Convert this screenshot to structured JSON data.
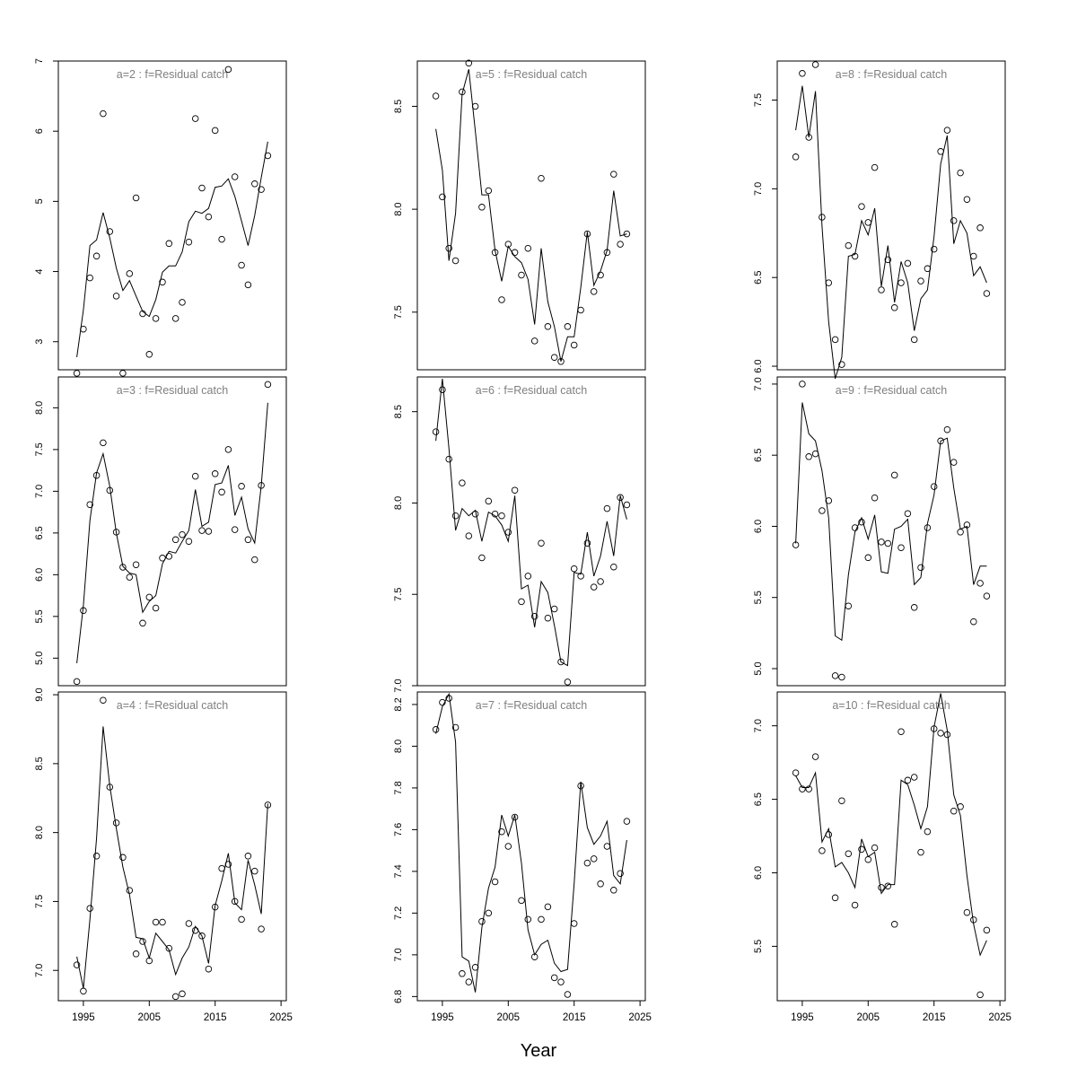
{
  "figure": {
    "xlabel": "Year"
  },
  "chart_data": [
    {
      "type": "line",
      "title": "a=2  :  f=Residual catch",
      "x": [
        1994,
        1995,
        1996,
        1997,
        1998,
        1999,
        2000,
        2001,
        2002,
        2003,
        2004,
        2005,
        2006,
        2007,
        2008,
        2009,
        2010,
        2011,
        2012,
        2013,
        2014,
        2015,
        2016,
        2017,
        2018,
        2019,
        2020,
        2021,
        2022,
        2023
      ],
      "ylim": [
        2.6,
        7.0
      ],
      "yticks": [
        3,
        4,
        5,
        6,
        7
      ],
      "xticks": [
        1995,
        2005,
        2015,
        2025
      ],
      "series": [
        {
          "kind": "points",
          "values": [
            2.55,
            3.18,
            3.91,
            4.22,
            6.25,
            4.57,
            3.65,
            2.55,
            3.97,
            5.05,
            3.4,
            2.82,
            3.33,
            3.85,
            4.4,
            3.33,
            3.56,
            4.42,
            6.18,
            5.19,
            4.78,
            6.01,
            4.46,
            6.88,
            5.35,
            4.09,
            3.81,
            5.25,
            5.17,
            5.65
          ]
        },
        {
          "kind": "line",
          "values": [
            2.78,
            3.45,
            4.37,
            4.45,
            4.84,
            4.48,
            4.05,
            3.73,
            3.87,
            3.65,
            3.43,
            3.36,
            3.6,
            3.99,
            4.08,
            4.08,
            4.28,
            4.71,
            4.86,
            4.83,
            4.9,
            5.2,
            5.22,
            5.32,
            5.07,
            4.72,
            4.37,
            4.8,
            5.34,
            5.85
          ]
        }
      ]
    },
    {
      "type": "line",
      "title": "a=5  :  f=Residual catch",
      "x": [
        1994,
        1995,
        1996,
        1997,
        1998,
        1999,
        2000,
        2001,
        2002,
        2003,
        2004,
        2005,
        2006,
        2007,
        2008,
        2009,
        2010,
        2011,
        2012,
        2013,
        2014,
        2015,
        2016,
        2017,
        2018,
        2019,
        2020,
        2021,
        2022,
        2023
      ],
      "ylim": [
        7.22,
        8.72
      ],
      "yticks": [
        7.5,
        8.0,
        8.5
      ],
      "xticks": [
        1995,
        2005,
        2015,
        2025
      ],
      "series": [
        {
          "kind": "points",
          "values": [
            8.55,
            8.06,
            7.81,
            7.75,
            8.57,
            8.71,
            8.5,
            8.01,
            8.09,
            7.79,
            7.56,
            7.83,
            7.79,
            7.68,
            7.81,
            7.36,
            8.15,
            7.43,
            7.28,
            7.26,
            7.43,
            7.34,
            7.51,
            7.88,
            7.6,
            7.68,
            7.79,
            8.17,
            7.83,
            7.88
          ]
        },
        {
          "kind": "line",
          "values": [
            8.39,
            8.19,
            7.75,
            7.98,
            8.56,
            8.68,
            8.38,
            8.07,
            8.07,
            7.8,
            7.65,
            7.82,
            7.77,
            7.74,
            7.66,
            7.44,
            7.81,
            7.55,
            7.43,
            7.26,
            7.38,
            7.38,
            7.62,
            7.89,
            7.63,
            7.7,
            7.8,
            8.09,
            7.87,
            7.88
          ]
        }
      ]
    },
    {
      "type": "line",
      "title": "a=8  :  f=Residual catch",
      "x": [
        1994,
        1995,
        1996,
        1997,
        1998,
        1999,
        2000,
        2001,
        2002,
        2003,
        2004,
        2005,
        2006,
        2007,
        2008,
        2009,
        2010,
        2011,
        2012,
        2013,
        2014,
        2015,
        2016,
        2017,
        2018,
        2019,
        2020,
        2021,
        2022,
        2023
      ],
      "ylim": [
        5.98,
        7.72
      ],
      "yticks": [
        6.0,
        6.5,
        7.0,
        7.5
      ],
      "xticks": [
        1995,
        2005,
        2015,
        2025
      ],
      "series": [
        {
          "kind": "points",
          "values": [
            7.18,
            7.65,
            7.29,
            7.7,
            6.84,
            6.47,
            6.15,
            6.01,
            6.68,
            6.62,
            6.9,
            6.81,
            7.12,
            6.43,
            6.6,
            6.33,
            6.47,
            6.58,
            6.15,
            6.48,
            6.55,
            6.66,
            7.21,
            7.33,
            6.82,
            7.09,
            6.94,
            6.62,
            6.78,
            6.41
          ]
        },
        {
          "kind": "line",
          "values": [
            7.33,
            7.58,
            7.29,
            7.55,
            6.79,
            6.25,
            5.93,
            6.05,
            6.62,
            6.63,
            6.82,
            6.74,
            6.89,
            6.45,
            6.68,
            6.36,
            6.59,
            6.47,
            6.2,
            6.38,
            6.43,
            6.73,
            7.14,
            7.3,
            6.69,
            6.82,
            6.75,
            6.51,
            6.56,
            6.47
          ]
        }
      ]
    },
    {
      "type": "line",
      "title": "a=3  :  f=Residual catch",
      "x": [
        1994,
        1995,
        1996,
        1997,
        1998,
        1999,
        2000,
        2001,
        2002,
        2003,
        2004,
        2005,
        2006,
        2007,
        2008,
        2009,
        2010,
        2011,
        2012,
        2013,
        2014,
        2015,
        2016,
        2017,
        2018,
        2019,
        2020,
        2021,
        2022,
        2023
      ],
      "ylim": [
        4.67,
        8.37
      ],
      "yticks": [
        5.0,
        5.5,
        6.0,
        6.5,
        7.0,
        7.5,
        8.0
      ],
      "xticks": [
        1995,
        2005,
        2015,
        2025
      ],
      "series": [
        {
          "kind": "points",
          "values": [
            4.72,
            5.57,
            6.84,
            7.19,
            7.58,
            7.01,
            6.51,
            6.09,
            5.97,
            6.12,
            5.42,
            5.73,
            5.6,
            6.2,
            6.22,
            6.42,
            6.48,
            6.4,
            7.18,
            6.53,
            6.52,
            7.21,
            6.99,
            7.5,
            6.54,
            7.06,
            6.42,
            6.18,
            7.07,
            8.28
          ]
        },
        {
          "kind": "line",
          "values": [
            4.94,
            5.63,
            6.65,
            7.22,
            7.45,
            7.06,
            6.5,
            6.1,
            6.02,
            6.0,
            5.55,
            5.68,
            5.75,
            6.13,
            6.28,
            6.26,
            6.4,
            6.53,
            7.02,
            6.58,
            6.63,
            7.08,
            7.1,
            7.31,
            6.71,
            6.93,
            6.55,
            6.38,
            7.07,
            8.06
          ]
        }
      ]
    },
    {
      "type": "line",
      "title": "a=6  :  f=Residual catch",
      "x": [
        1994,
        1995,
        1996,
        1997,
        1998,
        1999,
        2000,
        2001,
        2002,
        2003,
        2004,
        2005,
        2006,
        2007,
        2008,
        2009,
        2010,
        2011,
        2012,
        2013,
        2014,
        2015,
        2016,
        2017,
        2018,
        2019,
        2020,
        2021,
        2022,
        2023
      ],
      "ylim": [
        7.0,
        8.69
      ],
      "yticks": [
        7.0,
        7.5,
        8.0,
        8.5
      ],
      "xticks": [
        1995,
        2005,
        2015,
        2025
      ],
      "series": [
        {
          "kind": "points",
          "values": [
            8.39,
            8.62,
            8.24,
            7.93,
            8.11,
            7.82,
            7.94,
            7.7,
            8.01,
            7.94,
            7.93,
            7.84,
            8.07,
            7.46,
            7.6,
            7.38,
            7.78,
            7.37,
            7.42,
            7.13,
            7.02,
            7.64,
            7.6,
            7.78,
            7.54,
            7.57,
            7.97,
            7.65,
            8.03,
            7.99
          ]
        },
        {
          "kind": "line",
          "values": [
            8.34,
            8.68,
            8.3,
            7.85,
            7.97,
            7.93,
            7.96,
            7.79,
            7.95,
            7.93,
            7.88,
            7.79,
            8.04,
            7.53,
            7.55,
            7.32,
            7.57,
            7.51,
            7.33,
            7.13,
            7.11,
            7.62,
            7.61,
            7.84,
            7.6,
            7.71,
            7.9,
            7.71,
            8.04,
            7.91
          ]
        }
      ]
    },
    {
      "type": "line",
      "title": "a=9  :  f=Residual catch",
      "x": [
        1994,
        1995,
        1996,
        1997,
        1998,
        1999,
        2000,
        2001,
        2002,
        2003,
        2004,
        2005,
        2006,
        2007,
        2008,
        2009,
        2010,
        2011,
        2012,
        2013,
        2014,
        2015,
        2016,
        2017,
        2018,
        2019,
        2020,
        2021,
        2022,
        2023
      ],
      "ylim": [
        4.88,
        7.05
      ],
      "yticks": [
        5.0,
        5.5,
        6.0,
        6.5,
        7.0
      ],
      "xticks": [
        1995,
        2005,
        2015,
        2025
      ],
      "series": [
        {
          "kind": "points",
          "values": [
            5.87,
            7.0,
            6.49,
            6.51,
            6.11,
            6.18,
            4.95,
            4.94,
            5.44,
            5.99,
            6.03,
            5.78,
            6.2,
            5.89,
            5.88,
            6.36,
            5.85,
            6.09,
            5.43,
            5.71,
            5.99,
            6.28,
            6.6,
            6.68,
            6.45,
            5.96,
            6.01,
            5.33,
            5.6,
            5.51
          ]
        },
        {
          "kind": "line",
          "values": [
            5.88,
            6.87,
            6.65,
            6.6,
            6.39,
            6.06,
            5.23,
            5.2,
            5.66,
            5.96,
            6.06,
            5.91,
            6.08,
            5.68,
            5.67,
            5.98,
            6.0,
            6.05,
            5.59,
            5.64,
            6.02,
            6.22,
            6.6,
            6.62,
            6.27,
            5.98,
            6.0,
            5.59,
            5.72,
            5.72
          ]
        }
      ]
    },
    {
      "type": "line",
      "title": "a=4  :  f=Residual catch",
      "x": [
        1994,
        1995,
        1996,
        1997,
        1998,
        1999,
        2000,
        2001,
        2002,
        2003,
        2004,
        2005,
        2006,
        2007,
        2008,
        2009,
        2010,
        2011,
        2012,
        2013,
        2014,
        2015,
        2016,
        2017,
        2018,
        2019,
        2020,
        2021,
        2022,
        2023
      ],
      "ylim": [
        6.78,
        9.02
      ],
      "yticks": [
        7.0,
        7.5,
        8.0,
        8.5,
        9.0
      ],
      "xticks": [
        1995,
        2005,
        2015,
        2025
      ],
      "series": [
        {
          "kind": "points",
          "values": [
            7.04,
            6.85,
            7.45,
            7.83,
            8.96,
            8.33,
            8.07,
            7.82,
            7.58,
            7.12,
            7.21,
            7.07,
            7.35,
            7.35,
            7.16,
            6.81,
            6.83,
            7.34,
            7.29,
            7.25,
            7.01,
            7.46,
            7.74,
            7.77,
            7.5,
            7.37,
            7.83,
            7.72,
            7.3,
            8.2
          ]
        },
        {
          "kind": "line",
          "values": [
            7.1,
            6.87,
            7.37,
            7.96,
            8.77,
            8.34,
            8.03,
            7.75,
            7.55,
            7.24,
            7.23,
            7.09,
            7.27,
            7.21,
            7.15,
            6.97,
            7.09,
            7.17,
            7.32,
            7.25,
            7.05,
            7.47,
            7.65,
            7.85,
            7.49,
            7.44,
            7.8,
            7.62,
            7.41,
            8.21
          ]
        }
      ]
    },
    {
      "type": "line",
      "title": "a=7  :  f=Residual catch",
      "x": [
        1994,
        1995,
        1996,
        1997,
        1998,
        1999,
        2000,
        2001,
        2002,
        2003,
        2004,
        2005,
        2006,
        2007,
        2008,
        2009,
        2010,
        2011,
        2012,
        2013,
        2014,
        2015,
        2016,
        2017,
        2018,
        2019,
        2020,
        2021,
        2022,
        2023
      ],
      "ylim": [
        6.78,
        8.26
      ],
      "yticks": [
        6.8,
        7.0,
        7.2,
        7.4,
        7.6,
        7.8,
        8.0,
        8.2
      ],
      "xticks": [
        1995,
        2005,
        2015,
        2025
      ],
      "series": [
        {
          "kind": "points",
          "values": [
            8.08,
            8.21,
            8.23,
            8.09,
            6.91,
            6.87,
            6.94,
            7.16,
            7.2,
            7.35,
            7.59,
            7.52,
            7.66,
            7.26,
            7.17,
            6.99,
            7.17,
            7.23,
            6.89,
            6.87,
            6.81,
            7.15,
            7.81,
            7.44,
            7.46,
            7.34,
            7.52,
            7.31,
            7.39,
            7.64
          ]
        },
        {
          "kind": "line",
          "values": [
            8.06,
            8.19,
            8.25,
            8.02,
            6.99,
            6.97,
            6.82,
            7.13,
            7.32,
            7.42,
            7.67,
            7.57,
            7.67,
            7.44,
            7.12,
            7.0,
            7.05,
            7.07,
            6.96,
            6.92,
            6.93,
            7.34,
            7.83,
            7.61,
            7.53,
            7.57,
            7.64,
            7.38,
            7.34,
            7.55
          ]
        }
      ]
    },
    {
      "type": "line",
      "title": "a=10  :  f=Residual catch",
      "x": [
        1994,
        1995,
        1996,
        1997,
        1998,
        1999,
        2000,
        2001,
        2002,
        2003,
        2004,
        2005,
        2006,
        2007,
        2008,
        2009,
        2010,
        2011,
        2012,
        2013,
        2014,
        2015,
        2016,
        2017,
        2018,
        2019,
        2020,
        2021,
        2022,
        2023
      ],
      "ylim": [
        5.13,
        7.23
      ],
      "yticks": [
        5.5,
        6.0,
        6.5,
        7.0
      ],
      "xticks": [
        1995,
        2005,
        2015,
        2025
      ],
      "series": [
        {
          "kind": "points",
          "values": [
            6.68,
            6.57,
            6.57,
            6.79,
            6.15,
            6.26,
            5.83,
            6.49,
            6.13,
            5.78,
            6.16,
            6.09,
            6.17,
            5.9,
            5.91,
            5.65,
            6.96,
            6.63,
            6.65,
            6.14,
            6.28,
            6.98,
            6.95,
            6.94,
            6.42,
            6.45,
            5.73,
            5.68,
            5.17,
            5.61
          ]
        },
        {
          "kind": "line",
          "values": [
            6.66,
            6.58,
            6.58,
            6.68,
            6.21,
            6.3,
            6.04,
            6.07,
            6.0,
            5.9,
            6.23,
            6.11,
            6.14,
            5.86,
            5.92,
            5.92,
            6.63,
            6.6,
            6.46,
            6.3,
            6.45,
            6.99,
            7.22,
            6.97,
            6.53,
            6.39,
            5.98,
            5.65,
            5.44,
            5.54
          ]
        }
      ]
    }
  ]
}
